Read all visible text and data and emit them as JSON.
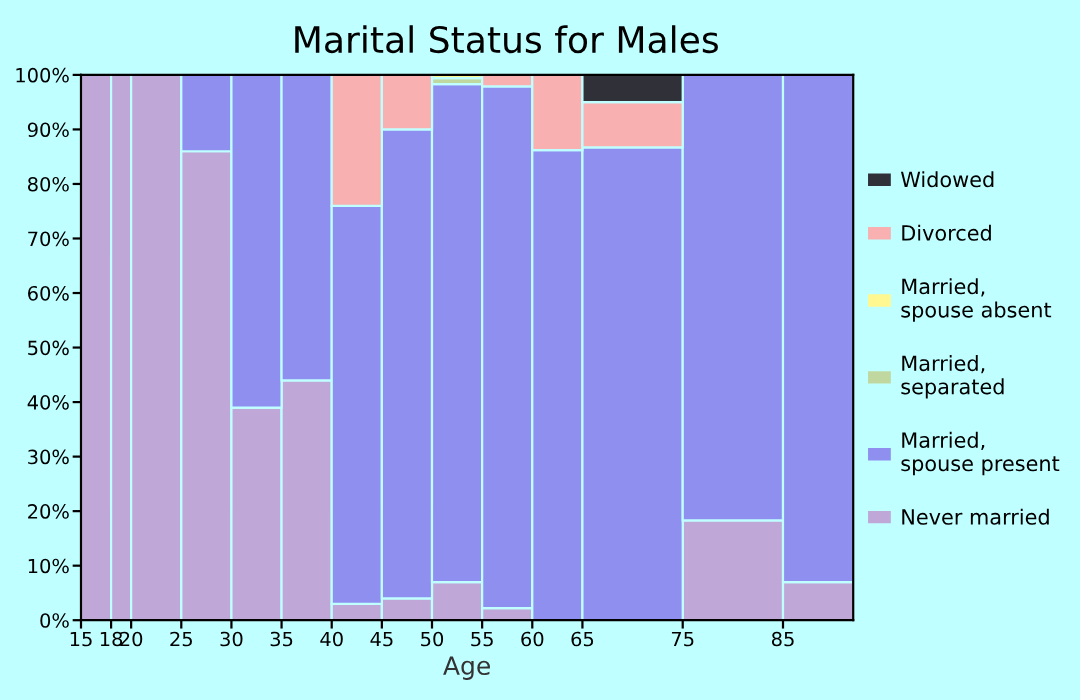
{
  "chart_data": {
    "type": "bar",
    "stacked": true,
    "title": "Marital Status for Males",
    "xlabel": "Age",
    "x": [
      16.5,
      19,
      22.5,
      27.5,
      32.5,
      37.5,
      42.5,
      47.5,
      52.5,
      57.5,
      62.5,
      70,
      80,
      88.5
    ],
    "series": [
      {
        "name": "Never married",
        "color": "#bfa8d8",
        "values": [
          100,
          100,
          100,
          86,
          39,
          44,
          3,
          4,
          7,
          2.2,
          0,
          0,
          18.3,
          7
        ]
      },
      {
        "name": "Married,\nspouse present",
        "color": "#8f8ff0",
        "values": [
          0,
          0,
          0,
          14,
          61,
          56,
          73,
          86,
          91.3,
          95.7,
          86.2,
          86.7,
          81.7,
          93
        ]
      },
      {
        "name": "Married,\nseparated",
        "color": "#c0d8a0",
        "values": [
          0,
          0,
          0,
          0,
          0,
          0,
          0,
          0,
          1.1,
          0,
          0,
          0,
          0,
          0
        ]
      },
      {
        "name": "Married,\nspouse absent",
        "color": "#fff890",
        "values": [
          0,
          0,
          0,
          0,
          0,
          0,
          0,
          0,
          0.6,
          0,
          0,
          0,
          0,
          0
        ]
      },
      {
        "name": "Divorced",
        "color": "#f8b0b0",
        "values": [
          0,
          0,
          0,
          0,
          0,
          0,
          24,
          10,
          0,
          2.1,
          13.8,
          8.3,
          0,
          0
        ]
      },
      {
        "name": "Widowed",
        "color": "#303038",
        "values": [
          0,
          0,
          0,
          0,
          0,
          0,
          0,
          0,
          0,
          0,
          0,
          5,
          0,
          0
        ]
      }
    ],
    "xlim": [
      15,
      92
    ],
    "xticks": [
      15,
      18,
      20,
      25,
      30,
      35,
      40,
      45,
      50,
      55,
      60,
      65,
      75,
      85
    ],
    "ylim": [
      0,
      100
    ],
    "yticks": [
      {
        "value": 0,
        "label": "0%"
      },
      {
        "value": 10,
        "label": "10%"
      },
      {
        "value": 20,
        "label": "20%"
      },
      {
        "value": 30,
        "label": "30%"
      },
      {
        "value": 40,
        "label": "40%"
      },
      {
        "value": 50,
        "label": "50%"
      },
      {
        "value": 60,
        "label": "60%"
      },
      {
        "value": 70,
        "label": "70%"
      },
      {
        "value": 80,
        "label": "80%"
      },
      {
        "value": 90,
        "label": "90%"
      },
      {
        "value": 100,
        "label": "100%"
      }
    ],
    "legend": "right"
  }
}
